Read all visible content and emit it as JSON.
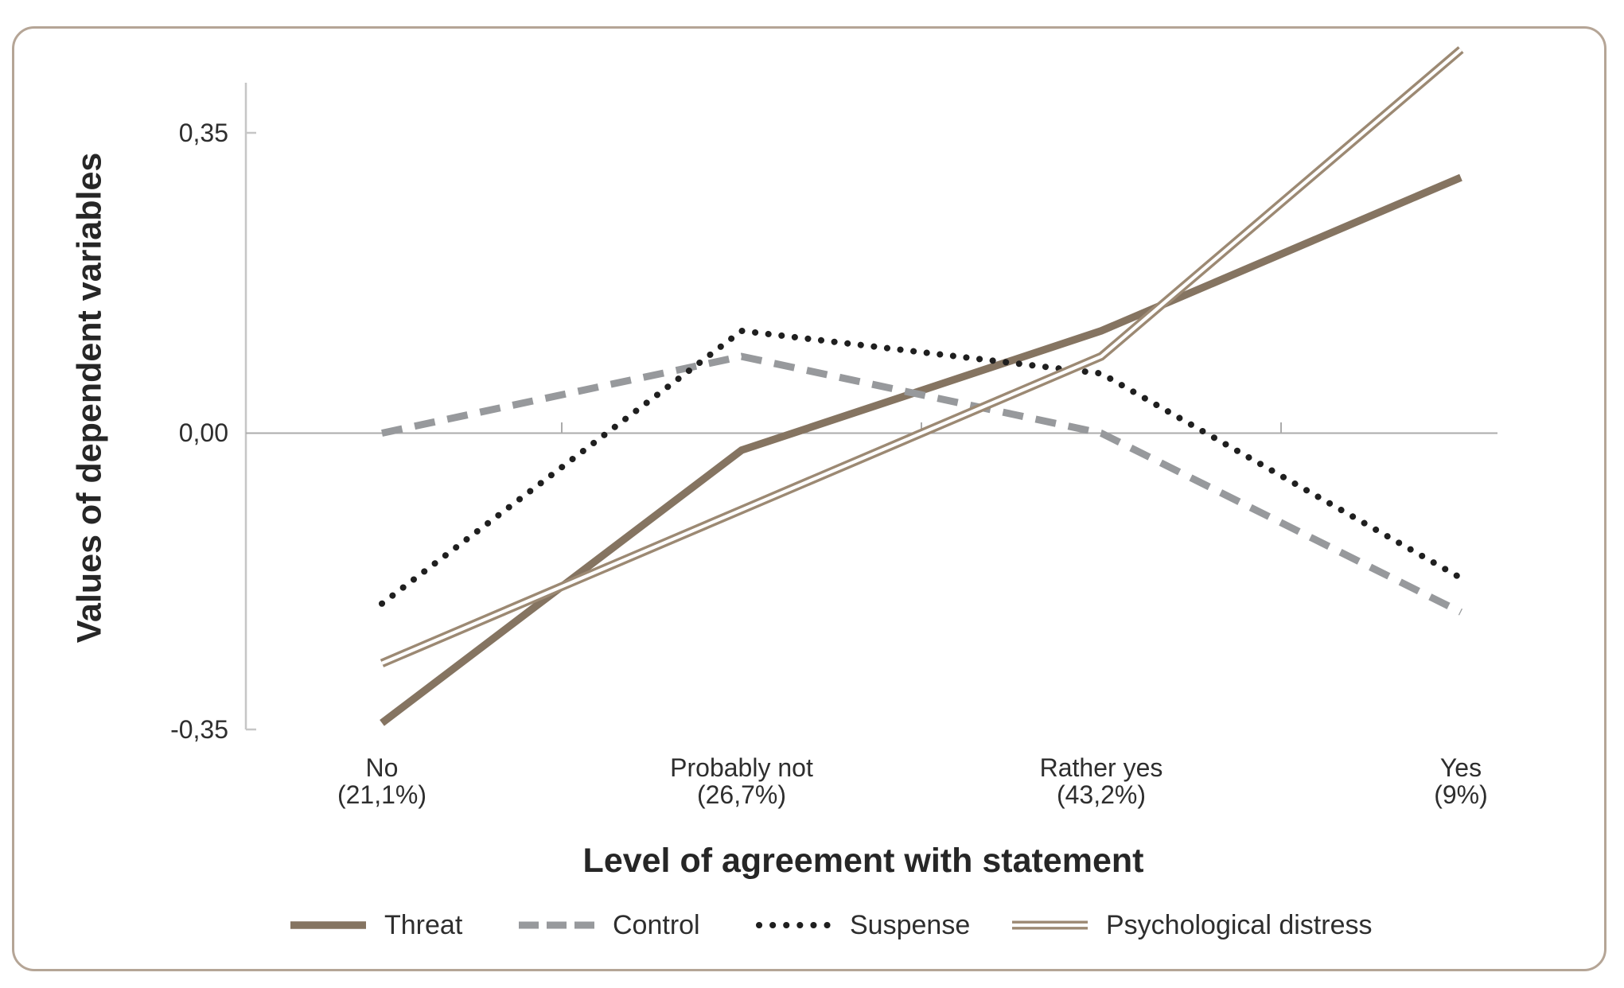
{
  "card": {
    "background": "#ffffff",
    "border_color": "#b5a596"
  },
  "chart_data": {
    "type": "line",
    "title": "",
    "xlabel": "Level of agreement with statement",
    "ylabel": "Values of dependent variables",
    "ylim": [
      -0.38,
      0.47
    ],
    "grid": "zero-line-only",
    "legend_position": "bottom",
    "yticks": [
      {
        "label": "0,35",
        "value": 0.35
      },
      {
        "label": "0,00",
        "value": 0.0
      },
      {
        "label": "-0,35",
        "value": -0.35
      }
    ],
    "categories": [
      {
        "line1": "No",
        "line2": "(21,1%)"
      },
      {
        "line1": "Probably not",
        "line2": "(26,7%)"
      },
      {
        "line1": "Rather yes",
        "line2": "(43,2%)"
      },
      {
        "line1": "Yes",
        "line2": "(9%)"
      }
    ],
    "series": [
      {
        "name": "Threat",
        "style": "solid",
        "color": "#857461",
        "values": [
          -0.34,
          -0.02,
          0.12,
          0.3
        ]
      },
      {
        "name": "Control",
        "style": "dashed",
        "color": "#97999c",
        "values": [
          0.0,
          0.09,
          0.0,
          -0.21
        ]
      },
      {
        "name": "Suspense",
        "style": "dotted",
        "color": "#1f1f1f",
        "values": [
          -0.2,
          0.12,
          0.07,
          -0.17
        ]
      },
      {
        "name": "Psychological distress",
        "style": "double",
        "color": "#9c8973",
        "values": [
          -0.27,
          -0.09,
          0.09,
          0.45
        ]
      }
    ],
    "axis_color": "#c6c6c6",
    "zero_line_color": "#ababab"
  }
}
